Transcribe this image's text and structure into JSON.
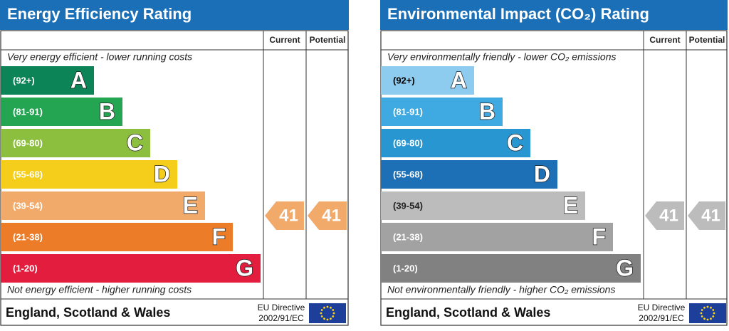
{
  "panels": [
    {
      "title": "Energy Efficiency Rating",
      "column_headers": [
        "Current",
        "Potential"
      ],
      "top_note": "Very energy efficient - lower running costs",
      "bottom_note": "Not energy efficient - higher running costs",
      "bands": [
        {
          "range": "(92+)",
          "letter": "A",
          "color": "#0d8457",
          "text_color": "#ffffff"
        },
        {
          "range": "(81-91)",
          "letter": "B",
          "color": "#23a552",
          "text_color": "#ffffff"
        },
        {
          "range": "(69-80)",
          "letter": "C",
          "color": "#8dbf3f",
          "text_color": "#ffffff"
        },
        {
          "range": "(55-68)",
          "letter": "D",
          "color": "#f5cd1b",
          "text_color": "#ffffff"
        },
        {
          "range": "(39-54)",
          "letter": "E",
          "color": "#f2aa6a",
          "text_color": "#ffffff"
        },
        {
          "range": "(21-38)",
          "letter": "F",
          "color": "#ec7c28",
          "text_color": "#ffffff"
        },
        {
          "range": "(1-20)",
          "letter": "G",
          "color": "#e31d3d",
          "text_color": "#ffffff"
        }
      ],
      "current": {
        "value": 41,
        "color": "#f2aa6a"
      },
      "potential": {
        "value": 41,
        "color": "#f2aa6a"
      },
      "footer": {
        "region": "England, Scotland & Wales",
        "directive": "EU Directive",
        "directive_number": "2002/91/EC"
      }
    },
    {
      "title": "Environmental Impact (CO₂) Rating",
      "column_headers": [
        "Current",
        "Potential"
      ],
      "top_note": "Very environmentally friendly - lower CO₂ emissions",
      "bottom_note": "Not environmentally friendly - higher CO₂ emissions",
      "bands": [
        {
          "range": "(92+)",
          "letter": "A",
          "color": "#8dcbef",
          "text_color": "#000000"
        },
        {
          "range": "(81-91)",
          "letter": "B",
          "color": "#3fa9e1",
          "text_color": "#ffffff"
        },
        {
          "range": "(69-80)",
          "letter": "C",
          "color": "#2896d1",
          "text_color": "#ffffff"
        },
        {
          "range": "(55-68)",
          "letter": "D",
          "color": "#1d6fb6",
          "text_color": "#ffffff"
        },
        {
          "range": "(39-54)",
          "letter": "E",
          "color": "#bcbcbc",
          "text_color": "#222222"
        },
        {
          "range": "(21-38)",
          "letter": "F",
          "color": "#a2a2a2",
          "text_color": "#ffffff"
        },
        {
          "range": "(1-20)",
          "letter": "G",
          "color": "#818181",
          "text_color": "#ffffff"
        }
      ],
      "current": {
        "value": 41,
        "color": "#bcbcbc"
      },
      "potential": {
        "value": 41,
        "color": "#bcbcbc"
      },
      "footer": {
        "region": "England, Scotland & Wales",
        "directive": "EU Directive",
        "directive_number": "2002/91/EC"
      }
    }
  ]
}
